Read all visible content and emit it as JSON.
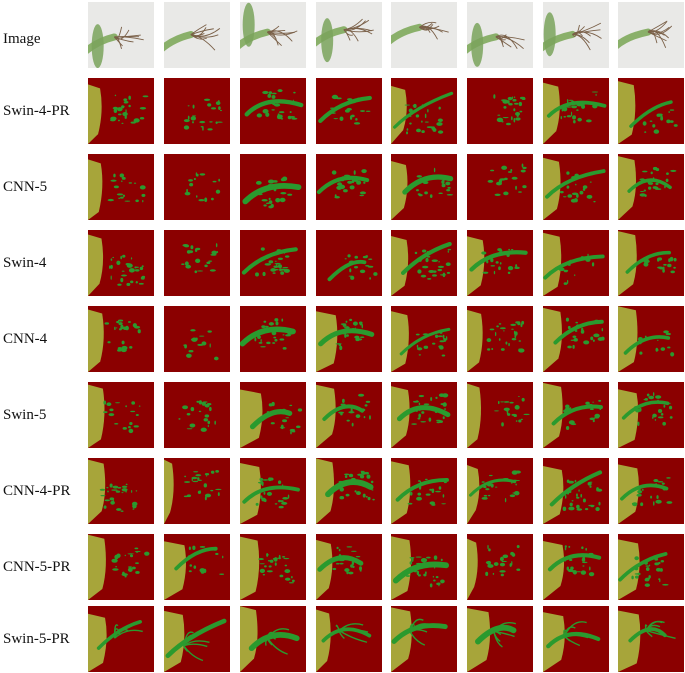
{
  "colors": {
    "background": "#8b0000",
    "root": "#2a9a2e",
    "stem": "#a7a53a",
    "photo_bg": "#e9e9e7",
    "photo_leaf": "#8ab06a",
    "photo_root": "#7a6048"
  },
  "rows": [
    {
      "label": "Image",
      "kind": "photo"
    },
    {
      "label": "Swin-4-PR",
      "kind": "mask"
    },
    {
      "label": "CNN-5",
      "kind": "mask"
    },
    {
      "label": "Swin-4",
      "kind": "mask"
    },
    {
      "label": "CNN-4",
      "kind": "mask"
    },
    {
      "label": "Swin-5",
      "kind": "mask"
    },
    {
      "label": "CNN-4-PR",
      "kind": "mask"
    },
    {
      "label": "CNN-5-PR",
      "kind": "mask"
    },
    {
      "label": "Swin-5-PR",
      "kind": "mask"
    }
  ],
  "column_count": 8
}
